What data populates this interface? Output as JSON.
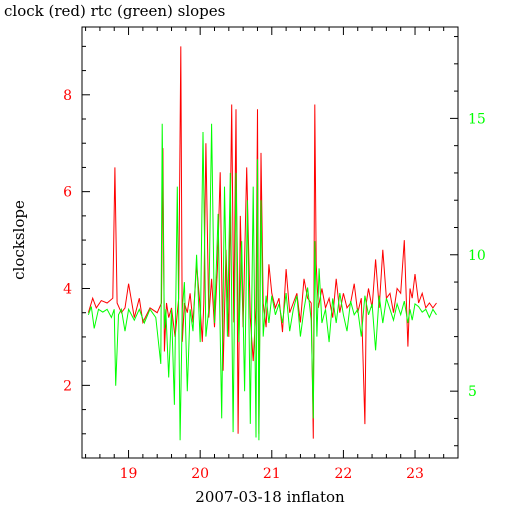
{
  "chart_data": {
    "type": "line",
    "title": "clock (red) rtc (green) slopes",
    "xlabel": "2007-03-18 inflaton",
    "ylabel": "clockslope",
    "xlim": [
      18.35,
      23.6
    ],
    "ylim": [
      0.5,
      9.4
    ],
    "y2lim": [
      2.55,
      18.35
    ],
    "x_ticks": [
      19,
      20,
      21,
      22,
      23
    ],
    "y_ticks": [
      2,
      4,
      6,
      8
    ],
    "y2_ticks": [
      5,
      10,
      15
    ],
    "grid": false,
    "colors": {
      "clock": "#ff0000",
      "rtc": "#00ff00",
      "left_axis_text": "#ff0000",
      "right_axis_text": "#00ff00",
      "frame": "#000000"
    },
    "series": [
      {
        "name": "clock",
        "color": "#ff0000",
        "axis": "left",
        "x": [
          18.44,
          18.5,
          18.55,
          18.62,
          18.7,
          18.78,
          18.81,
          18.84,
          18.9,
          18.95,
          19.0,
          19.08,
          19.15,
          19.2,
          19.3,
          19.4,
          19.46,
          19.48,
          19.5,
          19.53,
          19.56,
          19.6,
          19.65,
          19.7,
          19.73,
          19.75,
          19.78,
          19.82,
          19.86,
          19.9,
          19.95,
          20.0,
          20.03,
          20.05,
          20.08,
          20.12,
          20.16,
          20.2,
          20.24,
          20.28,
          20.32,
          20.36,
          20.4,
          20.44,
          20.47,
          20.5,
          20.53,
          20.56,
          20.6,
          20.65,
          20.7,
          20.74,
          20.78,
          20.8,
          20.82,
          20.85,
          20.88,
          20.92,
          20.96,
          21.0,
          21.05,
          21.1,
          21.15,
          21.2,
          21.25,
          21.3,
          21.35,
          21.4,
          21.45,
          21.5,
          21.55,
          21.58,
          21.6,
          21.62,
          21.65,
          21.7,
          21.75,
          21.8,
          21.85,
          21.9,
          21.95,
          22.0,
          22.05,
          22.1,
          22.15,
          22.2,
          22.25,
          22.3,
          22.32,
          22.35,
          22.4,
          22.45,
          22.5,
          22.55,
          22.6,
          22.65,
          22.7,
          22.75,
          22.8,
          22.85,
          22.9,
          22.93,
          22.96,
          23.0,
          23.05,
          23.1,
          23.15,
          23.2,
          23.25,
          23.3
        ],
        "y": [
          3.5,
          3.8,
          3.6,
          3.75,
          3.7,
          3.8,
          6.5,
          3.7,
          3.5,
          3.6,
          4.1,
          3.4,
          3.8,
          3.3,
          3.6,
          3.5,
          3.7,
          6.9,
          2.7,
          3.7,
          3.4,
          3.6,
          3.0,
          3.8,
          9.0,
          2.9,
          3.7,
          3.5,
          3.9,
          3.3,
          4.5,
          3.6,
          2.9,
          3.7,
          7.0,
          3.4,
          4.2,
          3.2,
          4.4,
          6.4,
          2.3,
          4.8,
          3.0,
          7.8,
          3.3,
          7.7,
          1.0,
          5.5,
          3.2,
          6.5,
          3.4,
          2.5,
          3.6,
          7.7,
          1.0,
          6.8,
          3.7,
          3.2,
          4.5,
          3.9,
          3.6,
          3.8,
          3.1,
          4.4,
          3.5,
          3.7,
          3.9,
          3.3,
          4.2,
          3.8,
          3.7,
          0.9,
          7.8,
          4.5,
          3.6,
          4.0,
          3.6,
          3.8,
          3.4,
          4.2,
          3.5,
          3.9,
          3.6,
          3.7,
          4.1,
          3.5,
          3.8,
          1.2,
          3.7,
          4.0,
          3.6,
          4.6,
          3.6,
          4.8,
          3.8,
          3.9,
          3.5,
          4.0,
          3.9,
          5.0,
          2.8,
          4.0,
          3.8,
          4.3,
          3.7,
          3.9,
          3.6,
          3.7,
          3.6,
          3.7
        ]
      },
      {
        "name": "rtc",
        "color": "#00ff00",
        "axis": "right",
        "x": [
          18.44,
          18.48,
          18.52,
          18.58,
          18.64,
          18.7,
          18.76,
          18.8,
          18.82,
          18.86,
          18.9,
          18.95,
          19.0,
          19.08,
          19.15,
          19.22,
          19.3,
          19.38,
          19.45,
          19.47,
          19.5,
          19.52,
          19.56,
          19.6,
          19.64,
          19.68,
          19.72,
          19.75,
          19.78,
          19.82,
          19.86,
          19.9,
          19.95,
          20.0,
          20.04,
          20.08,
          20.12,
          20.16,
          20.2,
          20.25,
          20.3,
          20.34,
          20.38,
          20.42,
          20.46,
          20.5,
          20.54,
          20.58,
          20.62,
          20.66,
          20.7,
          20.74,
          20.78,
          20.8,
          20.82,
          20.85,
          20.88,
          20.92,
          20.96,
          21.0,
          21.05,
          21.1,
          21.15,
          21.2,
          21.25,
          21.3,
          21.35,
          21.4,
          21.45,
          21.5,
          21.55,
          21.58,
          21.6,
          21.63,
          21.66,
          21.7,
          21.75,
          21.8,
          21.85,
          21.9,
          21.95,
          22.0,
          22.05,
          22.1,
          22.15,
          22.2,
          22.25,
          22.3,
          22.35,
          22.4,
          22.45,
          22.5,
          22.55,
          22.6,
          22.65,
          22.7,
          22.75,
          22.8,
          22.85,
          22.9,
          22.93,
          22.96,
          23.0,
          23.05,
          23.1,
          23.15,
          23.2,
          23.25,
          23.3
        ],
        "y": [
          7.8,
          8.1,
          7.3,
          8.0,
          7.9,
          8.0,
          7.7,
          8.0,
          5.2,
          7.8,
          8.0,
          7.2,
          8.0,
          7.6,
          8.0,
          7.5,
          8.0,
          7.7,
          6.0,
          14.8,
          7.3,
          8.0,
          5.5,
          8.0,
          4.5,
          12.5,
          3.2,
          8.0,
          9.0,
          5.0,
          8.0,
          7.2,
          10.0,
          6.8,
          14.5,
          7.0,
          8.0,
          14.8,
          7.5,
          11.5,
          4.0,
          12.5,
          7.0,
          13.0,
          3.5,
          13.0,
          6.8,
          10.5,
          5.0,
          12.0,
          3.8,
          12.5,
          3.3,
          13.5,
          3.2,
          12.0,
          7.0,
          8.5,
          7.5,
          8.5,
          7.8,
          8.2,
          7.5,
          8.6,
          7.2,
          8.0,
          8.5,
          7.0,
          8.0,
          8.8,
          7.6,
          4.0,
          10.5,
          7.0,
          9.5,
          7.5,
          8.0,
          6.8,
          8.4,
          7.5,
          8.6,
          7.8,
          7.2,
          8.3,
          7.8,
          8.0,
          7.0,
          8.5,
          7.8,
          8.2,
          6.5,
          8.5,
          7.5,
          8.4,
          8.0,
          7.6,
          8.2,
          7.8,
          8.3,
          7.5,
          8.0,
          7.6,
          8.2,
          8.1,
          7.9,
          8.0,
          7.7,
          8.0,
          7.8
        ]
      }
    ]
  }
}
